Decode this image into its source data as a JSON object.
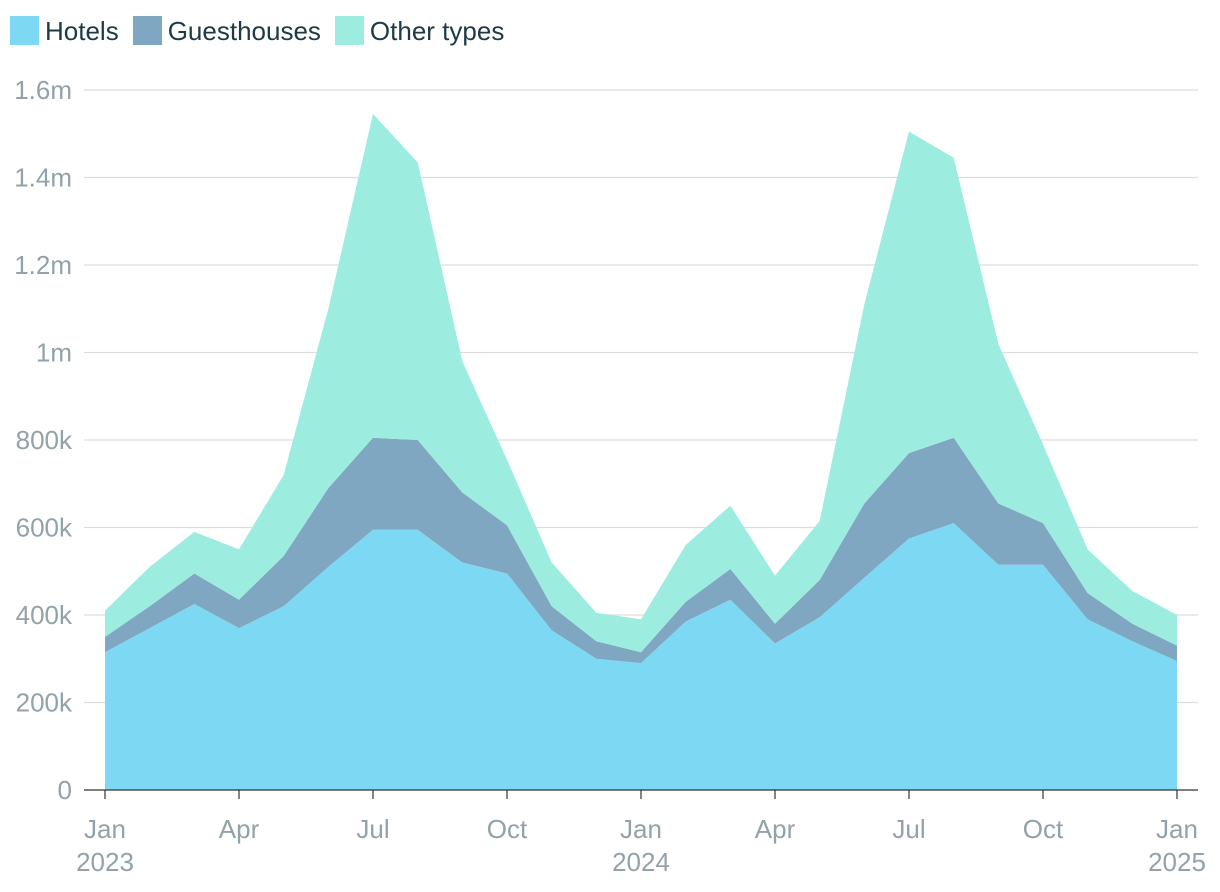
{
  "chart_data": {
    "type": "area",
    "stacked": true,
    "title": "",
    "xlabel": "",
    "ylabel": "",
    "grid": true,
    "legend_placement": "top-left",
    "ylim": [
      0,
      1600000
    ],
    "y_ticks": [
      0,
      200000,
      400000,
      600000,
      800000,
      1000000,
      1200000,
      1400000,
      1600000
    ],
    "y_tick_labels": [
      "0",
      "200k",
      "400k",
      "600k",
      "800k",
      "1m",
      "1.2m",
      "1.4m",
      "1.6m"
    ],
    "x": [
      "2023-01",
      "2023-02",
      "2023-03",
      "2023-04",
      "2023-05",
      "2023-06",
      "2023-07",
      "2023-08",
      "2023-09",
      "2023-10",
      "2023-11",
      "2023-12",
      "2024-01",
      "2024-02",
      "2024-03",
      "2024-04",
      "2024-05",
      "2024-06",
      "2024-07",
      "2024-08",
      "2024-09",
      "2024-10",
      "2024-11",
      "2024-12",
      "2025-01"
    ],
    "x_ticks": [
      {
        "x": "2023-01",
        "month": "Jan",
        "year": "2023"
      },
      {
        "x": "2023-04",
        "month": "Apr",
        "year": ""
      },
      {
        "x": "2023-07",
        "month": "Jul",
        "year": ""
      },
      {
        "x": "2023-10",
        "month": "Oct",
        "year": ""
      },
      {
        "x": "2024-01",
        "month": "Jan",
        "year": "2024"
      },
      {
        "x": "2024-04",
        "month": "Apr",
        "year": ""
      },
      {
        "x": "2024-07",
        "month": "Jul",
        "year": ""
      },
      {
        "x": "2024-10",
        "month": "Oct",
        "year": ""
      },
      {
        "x": "2025-01",
        "month": "Jan",
        "year": "2025"
      }
    ],
    "series": [
      {
        "name": "Hotels",
        "color": "#7dd9f3",
        "values": [
          315000,
          370000,
          425000,
          370000,
          420000,
          510000,
          595000,
          595000,
          520000,
          495000,
          365000,
          300000,
          290000,
          385000,
          435000,
          335000,
          395000,
          485000,
          575000,
          610000,
          515000,
          515000,
          390000,
          340000,
          295000
        ]
      },
      {
        "name": "Guesthouses",
        "color": "#80a7c2",
        "values": [
          35000,
          50000,
          70000,
          65000,
          115000,
          180000,
          210000,
          205000,
          160000,
          110000,
          55000,
          40000,
          25000,
          45000,
          70000,
          45000,
          85000,
          170000,
          195000,
          195000,
          140000,
          95000,
          60000,
          40000,
          35000
        ]
      },
      {
        "name": "Other types",
        "color": "#9cecdf",
        "values": [
          60000,
          90000,
          95000,
          115000,
          185000,
          410000,
          740000,
          635000,
          300000,
          150000,
          100000,
          65000,
          75000,
          130000,
          145000,
          110000,
          135000,
          455000,
          735000,
          640000,
          365000,
          180000,
          100000,
          75000,
          70000
        ]
      }
    ]
  }
}
